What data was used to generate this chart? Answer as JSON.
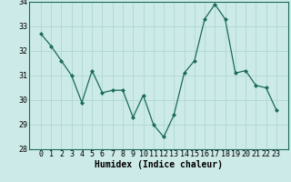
{
  "x": [
    0,
    1,
    2,
    3,
    4,
    5,
    6,
    7,
    8,
    9,
    10,
    11,
    12,
    13,
    14,
    15,
    16,
    17,
    18,
    19,
    20,
    21,
    22,
    23
  ],
  "y": [
    32.7,
    32.2,
    31.6,
    31.0,
    29.9,
    31.2,
    30.3,
    30.4,
    30.4,
    29.3,
    30.2,
    29.0,
    28.5,
    29.4,
    31.1,
    31.6,
    33.3,
    33.9,
    33.3,
    31.1,
    31.2,
    30.6,
    30.5,
    29.6
  ],
  "title": "",
  "xlabel": "Humidex (Indice chaleur)",
  "ylabel": "",
  "ylim": [
    28,
    34
  ],
  "yticks": [
    28,
    29,
    30,
    31,
    32,
    33,
    34
  ],
  "xticks": [
    0,
    1,
    2,
    3,
    4,
    5,
    6,
    7,
    8,
    9,
    10,
    11,
    12,
    13,
    14,
    15,
    16,
    17,
    18,
    19,
    20,
    21,
    22,
    23
  ],
  "line_color": "#1a6b5a",
  "marker": "D",
  "marker_size": 2.0,
  "bg_color": "#cceae7",
  "grid_color": "#aad4cf",
  "fig_bg_color": "#cceae7",
  "xlabel_fontsize": 7,
  "tick_fontsize": 6,
  "linewidth": 0.9
}
